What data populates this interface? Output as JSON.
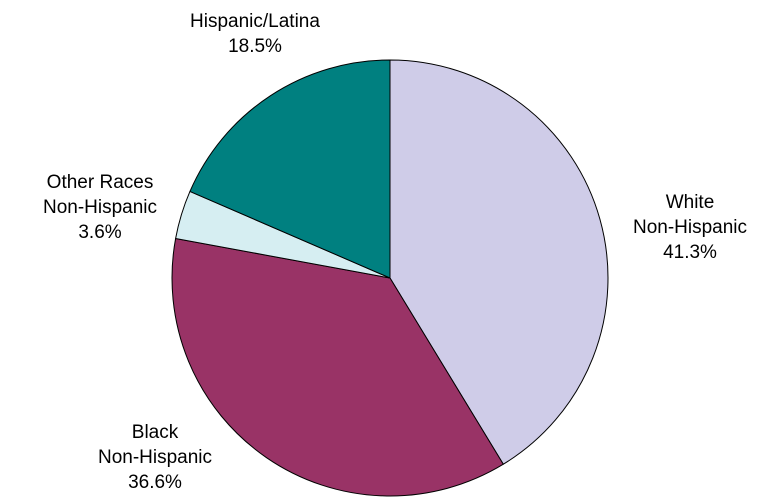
{
  "chart_data": {
    "type": "pie",
    "start_angle_deg": 0,
    "direction": "clockwise",
    "slices": [
      {
        "lines": [
          "White",
          "Non-Hispanic"
        ],
        "value": 41.3,
        "value_label": "41.3%",
        "color": "#cfcce8"
      },
      {
        "lines": [
          "Black",
          "Non-Hispanic"
        ],
        "value": 36.6,
        "value_label": "36.6%",
        "color": "#993366"
      },
      {
        "lines": [
          "Other Races",
          "Non-Hispanic"
        ],
        "value": 3.6,
        "value_label": "3.6%",
        "color": "#d6eef2"
      },
      {
        "lines": [
          "Hispanic/Latina"
        ],
        "value": 18.5,
        "value_label": "18.5%",
        "color": "#008080"
      }
    ]
  }
}
